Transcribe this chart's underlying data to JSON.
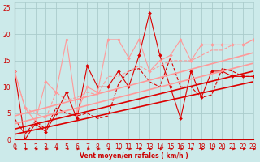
{
  "xlabel": "Vent moyen/en rafales ( km/h )",
  "xlim": [
    0,
    23
  ],
  "ylim": [
    0,
    26
  ],
  "bg_color": "#cceaea",
  "grid_color": "#aacccc",
  "series": [
    {
      "x": [
        0,
        1,
        2,
        3,
        4,
        5,
        6,
        7,
        8,
        9,
        10,
        11,
        12,
        13,
        14,
        15,
        16,
        17,
        18,
        19,
        20,
        21,
        22,
        23
      ],
      "y": [
        13,
        0,
        3,
        1.5,
        5,
        9,
        4,
        14,
        10,
        10,
        13,
        10,
        16,
        24,
        16,
        10,
        4,
        13,
        8,
        13,
        13,
        12,
        12,
        12
      ],
      "color": "#dd0000",
      "lw": 0.8,
      "marker": "D",
      "ms": 2.0,
      "ls": "-"
    },
    {
      "x": [
        0,
        1,
        2,
        3,
        4,
        5,
        6,
        7,
        8,
        9,
        10,
        11,
        12,
        13,
        14,
        15,
        16,
        17,
        18,
        19,
        20,
        21,
        22,
        23
      ],
      "y": [
        13,
        6,
        3.5,
        11,
        9,
        19,
        5,
        10,
        9,
        19,
        19,
        15.5,
        19,
        13,
        15,
        16,
        19,
        15,
        18,
        18,
        18,
        18,
        18,
        19
      ],
      "color": "#ff9999",
      "lw": 0.8,
      "marker": "D",
      "ms": 2.0,
      "ls": "-"
    },
    {
      "x": [
        0,
        1,
        2,
        3,
        4,
        5,
        6,
        7,
        8,
        9,
        10,
        11,
        12,
        13,
        14,
        15,
        16,
        17,
        18,
        19,
        20,
        21,
        22,
        23
      ],
      "y": [
        4,
        1,
        3.5,
        2,
        6,
        5,
        4.5,
        5,
        4,
        4.5,
        10.5,
        13,
        13.5,
        11,
        10,
        15.5,
        10,
        10,
        8,
        8.5,
        13.5,
        13,
        12,
        12
      ],
      "color": "#dd0000",
      "lw": 0.8,
      "marker": null,
      "ms": 0,
      "ls": "--"
    },
    {
      "x": [
        0,
        1,
        2,
        3,
        4,
        5,
        6,
        7,
        8,
        9,
        10,
        11,
        12,
        13,
        14,
        15,
        16,
        17,
        18,
        19,
        20,
        21,
        22,
        23
      ],
      "y": [
        13,
        6,
        5,
        4,
        9,
        7.5,
        8,
        9,
        8.5,
        12,
        12,
        13,
        14,
        13,
        14,
        15,
        15,
        15,
        16,
        17,
        17,
        18,
        18,
        19
      ],
      "color": "#ff9999",
      "lw": 0.8,
      "marker": null,
      "ms": 0,
      "ls": "--"
    },
    {
      "x": [
        0,
        23
      ],
      "y": [
        1.0,
        11.0
      ],
      "color": "#dd0000",
      "lw": 1.2,
      "marker": null,
      "ms": 0,
      "ls": "-"
    },
    {
      "x": [
        0,
        23
      ],
      "y": [
        2.0,
        13.0
      ],
      "color": "#dd0000",
      "lw": 1.2,
      "marker": null,
      "ms": 0,
      "ls": "-"
    },
    {
      "x": [
        0,
        23
      ],
      "y": [
        3.0,
        14.5
      ],
      "color": "#ff9999",
      "lw": 1.2,
      "marker": null,
      "ms": 0,
      "ls": "-"
    },
    {
      "x": [
        0,
        23
      ],
      "y": [
        4.5,
        16.5
      ],
      "color": "#ff9999",
      "lw": 1.2,
      "marker": null,
      "ms": 0,
      "ls": "-"
    }
  ],
  "xticks": [
    0,
    1,
    2,
    3,
    4,
    5,
    6,
    7,
    8,
    9,
    10,
    11,
    12,
    13,
    14,
    15,
    16,
    17,
    18,
    19,
    20,
    21,
    22,
    23
  ],
  "yticks": [
    0,
    5,
    10,
    15,
    20,
    25
  ],
  "tick_color": "#cc0000",
  "label_color": "#cc0000",
  "label_fontsize": 5.5,
  "label_fontweight": "bold"
}
